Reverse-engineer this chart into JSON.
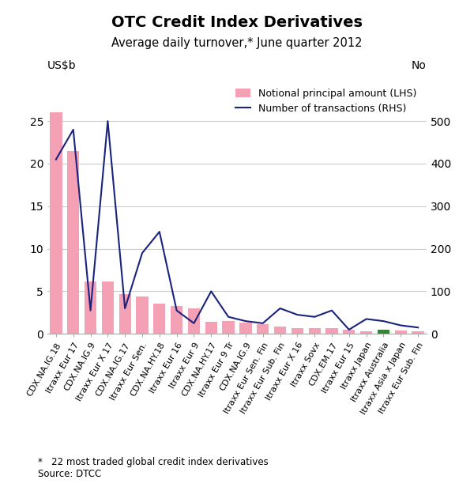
{
  "title": "OTC Credit Index Derivatives",
  "subtitle": "Average daily turnover,* June quarter 2012",
  "ylabel_left": "US$b",
  "ylabel_right": "No",
  "footnote": "*   22 most traded global credit index derivatives\nSource: DTCC",
  "categories": [
    "CDX.NA.IG.18",
    "Itraxx Eur 17",
    "CDX.NA.IG.9",
    "Itraxx Eur X 17",
    "CDX.NA.IG.17",
    "Itraxx Eur Sen.",
    "CDX.NA.HY.18",
    "Itraxx Eur 16",
    "Itraxx Eur 9",
    "CDX.NA.HY.17",
    "Itraxx Eur 9 Tr",
    "CDX.NA.IG.9",
    "Itraxx Eur Sen. Fin",
    "Itraxx Eur Sub. Fin",
    "Itraxx Eur X 16",
    "Itraxx Sovx",
    "CDX.EM.17",
    "Itraxx Eur 15",
    "Itraxx Japan",
    "Itraxx Australia",
    "Itraxx Asia x Japan",
    "Itraxx Eur Sub. Fin"
  ],
  "bar_values": [
    26.0,
    21.5,
    6.2,
    6.2,
    4.7,
    4.4,
    3.6,
    3.3,
    3.0,
    1.4,
    1.5,
    1.3,
    1.1,
    0.9,
    0.7,
    0.7,
    0.7,
    0.5,
    0.3,
    0.5,
    0.4,
    0.3
  ],
  "bar_colors": [
    "#f4a0b5",
    "#f4a0b5",
    "#f4a0b5",
    "#f4a0b5",
    "#f4a0b5",
    "#f4a0b5",
    "#f4a0b5",
    "#f4a0b5",
    "#f4a0b5",
    "#f4a0b5",
    "#f4a0b5",
    "#f4a0b5",
    "#f4a0b5",
    "#f4a0b5",
    "#f4a0b5",
    "#f4a0b5",
    "#f4a0b5",
    "#f4a0b5",
    "#f4a0b5",
    "#2d8a2d",
    "#f4a0b5",
    "#f4a0b5"
  ],
  "line_values": [
    410,
    480,
    55,
    500,
    60,
    190,
    240,
    55,
    25,
    100,
    40,
    30,
    25,
    60,
    45,
    40,
    55,
    10,
    35,
    30,
    20,
    15
  ],
  "line_color": "#1a237e",
  "ylim_left": [
    0,
    30
  ],
  "ylim_right": [
    0,
    600
  ],
  "yticks_left": [
    0,
    5,
    10,
    15,
    20,
    25
  ],
  "yticks_right": [
    0,
    100,
    200,
    300,
    400,
    500
  ],
  "legend_bar_label": "Notional principal amount (LHS)",
  "legend_line_label": "Number of transactions (RHS)",
  "background_color": "#ffffff",
  "title_fontsize": 14,
  "subtitle_fontsize": 10.5,
  "tick_fontsize": 10,
  "xtick_fontsize": 8
}
